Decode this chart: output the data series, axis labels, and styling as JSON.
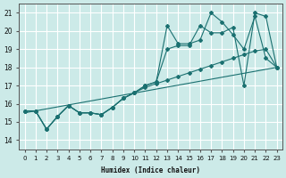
{
  "xlabel": "Humidex (Indice chaleur)",
  "ylabel": "",
  "bg_color": "#cceae8",
  "grid_color": "#ffffff",
  "line_color": "#1a7070",
  "xlim": [
    -0.5,
    23.5
  ],
  "ylim": [
    13.5,
    21.5
  ],
  "yticks": [
    14,
    15,
    16,
    17,
    18,
    19,
    20,
    21
  ],
  "xticks": [
    0,
    1,
    2,
    3,
    4,
    5,
    6,
    7,
    8,
    9,
    10,
    11,
    12,
    13,
    14,
    15,
    16,
    17,
    18,
    19,
    20,
    21,
    22,
    23
  ],
  "series": [
    {
      "x": [
        0,
        1,
        2,
        3,
        4,
        5,
        6,
        7,
        8,
        9,
        10,
        11,
        12,
        13,
        14,
        15,
        16,
        17,
        18,
        19,
        20,
        21,
        22,
        23
      ],
      "y": [
        15.6,
        15.6,
        14.6,
        15.3,
        15.9,
        15.5,
        15.5,
        15.4,
        15.8,
        16.3,
        16.6,
        17.0,
        17.2,
        19.0,
        19.2,
        19.2,
        20.3,
        19.9,
        19.9,
        20.2,
        17.0,
        21.0,
        20.8,
        18.0
      ],
      "has_markers": true
    },
    {
      "x": [
        0,
        1,
        2,
        3,
        4,
        5,
        6,
        7,
        8,
        9,
        10,
        11,
        12,
        13,
        14,
        15,
        16,
        17,
        18,
        19,
        20,
        21,
        22,
        23
      ],
      "y": [
        15.6,
        15.6,
        14.6,
        15.3,
        15.9,
        15.5,
        15.5,
        15.4,
        15.8,
        16.3,
        16.6,
        17.0,
        17.2,
        20.3,
        19.3,
        19.3,
        19.5,
        21.0,
        20.5,
        19.8,
        19.0,
        20.8,
        18.5,
        18.0
      ],
      "has_markers": true
    },
    {
      "x": [
        0,
        23
      ],
      "y": [
        15.5,
        18.0
      ],
      "has_markers": false
    },
    {
      "x": [
        0,
        1,
        2,
        3,
        4,
        5,
        6,
        7,
        8,
        9,
        10,
        11,
        12,
        13,
        14,
        15,
        16,
        17,
        18,
        19,
        20,
        21,
        22,
        23
      ],
      "y": [
        15.6,
        15.6,
        14.6,
        15.3,
        15.9,
        15.5,
        15.5,
        15.4,
        15.8,
        16.3,
        16.6,
        16.9,
        17.1,
        17.3,
        17.5,
        17.7,
        17.9,
        18.1,
        18.3,
        18.5,
        18.7,
        18.9,
        19.0,
        18.0
      ],
      "has_markers": true
    }
  ]
}
